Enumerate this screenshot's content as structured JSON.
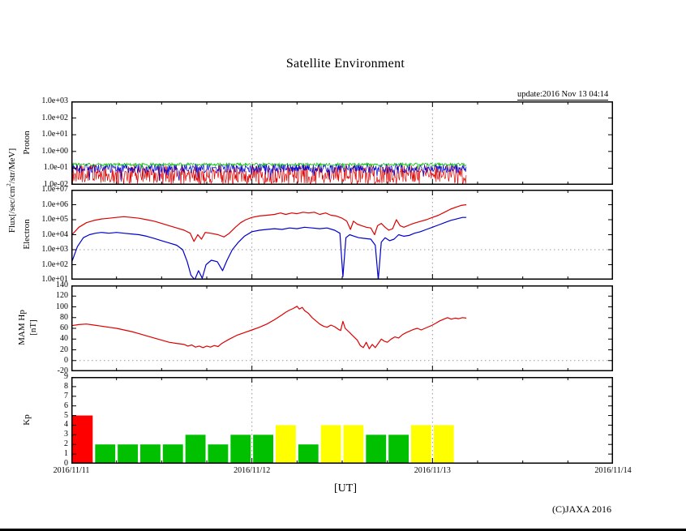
{
  "title": "Satellite Environment",
  "update_label": "update:2016 Nov 13 04:14",
  "footer": {
    "ut_label": "[UT]",
    "copyright": "(C)JAXA 2016"
  },
  "left_labels": {
    "flux_pre": "Flux[/sec/cm",
    "flux_sup": "2",
    "flux_post": "/str/MeV]",
    "proton": "Proton",
    "electron": "Electron",
    "mam": "MAM Hp",
    "mam_unit": "[nT]",
    "kp": "Kp"
  },
  "x_axis": {
    "labels": [
      "2016/11/11",
      "2016/11/12",
      "2016/11/13",
      "2016/11/14"
    ],
    "range_hours": [
      0,
      72
    ],
    "gridline_hours": [
      24,
      48
    ],
    "minor_tick_hours": 6
  },
  "chart_data": [
    {
      "name": "proton_flux",
      "type": "noise-band",
      "yscale": "log",
      "ylog_range": [
        -2,
        3
      ],
      "yticks": [
        "1.0e+03",
        "1.0e+02",
        "1.0e+01",
        "1.0e+00",
        "1.0e-01",
        "1.0e-02"
      ],
      "t_end_hours": 52.5,
      "series": [
        {
          "name": "proton-red",
          "color": "#dd0000",
          "log_center": -1.35,
          "log_amp": 0.55,
          "spike_prob": 0.15,
          "spike_mag": 0.65
        },
        {
          "name": "proton-blue",
          "color": "#0000cc",
          "log_center": -1.02,
          "log_amp": 0.28,
          "spike_prob": 0.05,
          "spike_mag": 0.7
        },
        {
          "name": "proton-green",
          "color": "#00bb00",
          "log_center": -0.78,
          "log_amp": 0.09,
          "spike_prob": 0.02,
          "spike_mag": 0.3
        }
      ]
    },
    {
      "name": "electron_flux",
      "type": "line",
      "yscale": "log",
      "ylog_range": [
        1,
        7
      ],
      "yticks": [
        "1.0e+07",
        "1.0e+06",
        "1.0e+05",
        "1.0e+04",
        "1.0e+03",
        "1.0e+02",
        "1.0e+01"
      ],
      "dotted_line_log": 3,
      "series": [
        {
          "name": "electron-red",
          "color": "#dd0000",
          "points": [
            [
              0,
              3.95
            ],
            [
              1,
              4.5
            ],
            [
              2,
              4.8
            ],
            [
              3,
              4.95
            ],
            [
              4,
              5.05
            ],
            [
              5,
              5.1
            ],
            [
              6,
              5.15
            ],
            [
              7,
              5.2
            ],
            [
              8,
              5.15
            ],
            [
              9,
              5.1
            ],
            [
              10,
              5.0
            ],
            [
              11,
              4.9
            ],
            [
              12,
              4.75
            ],
            [
              13,
              4.6
            ],
            [
              14,
              4.45
            ],
            [
              15,
              4.3
            ],
            [
              15.8,
              4.1
            ],
            [
              16.3,
              3.55
            ],
            [
              16.8,
              4.0
            ],
            [
              17.3,
              3.7
            ],
            [
              17.8,
              4.15
            ],
            [
              18.5,
              4.1
            ],
            [
              19.5,
              4.0
            ],
            [
              20.3,
              3.85
            ],
            [
              21,
              4.1
            ],
            [
              21.8,
              4.5
            ],
            [
              22.5,
              4.8
            ],
            [
              23.2,
              5.0
            ],
            [
              24,
              5.15
            ],
            [
              25,
              5.25
            ],
            [
              26,
              5.3
            ],
            [
              27,
              5.35
            ],
            [
              27.8,
              5.45
            ],
            [
              28.5,
              5.35
            ],
            [
              29.3,
              5.45
            ],
            [
              30,
              5.4
            ],
            [
              30.8,
              5.5
            ],
            [
              31.5,
              5.45
            ],
            [
              32.3,
              5.5
            ],
            [
              33,
              5.35
            ],
            [
              33.8,
              5.45
            ],
            [
              34.5,
              5.3
            ],
            [
              35.2,
              5.25
            ],
            [
              36,
              5.1
            ],
            [
              36.6,
              4.9
            ],
            [
              37.1,
              4.35
            ],
            [
              37.5,
              4.9
            ],
            [
              38,
              4.7
            ],
            [
              38.6,
              4.6
            ],
            [
              39.2,
              4.5
            ],
            [
              39.8,
              4.45
            ],
            [
              40.3,
              4.0
            ],
            [
              40.7,
              4.6
            ],
            [
              41.2,
              4.75
            ],
            [
              41.7,
              4.5
            ],
            [
              42.2,
              4.3
            ],
            [
              42.7,
              4.4
            ],
            [
              43.2,
              5.0
            ],
            [
              43.7,
              4.6
            ],
            [
              44.2,
              4.5
            ],
            [
              44.7,
              4.6
            ],
            [
              45.2,
              4.7
            ],
            [
              45.8,
              4.8
            ],
            [
              46.5,
              4.9
            ],
            [
              47.2,
              5.0
            ],
            [
              48,
              5.15
            ],
            [
              48.8,
              5.3
            ],
            [
              49.6,
              5.5
            ],
            [
              50.4,
              5.7
            ],
            [
              51.2,
              5.85
            ],
            [
              51.8,
              5.95
            ],
            [
              52.5,
              6.0
            ]
          ]
        },
        {
          "name": "electron-blue",
          "color": "#0000cc",
          "points": [
            [
              0,
              2.1
            ],
            [
              0.8,
              3.2
            ],
            [
              1.6,
              3.8
            ],
            [
              2.4,
              4.0
            ],
            [
              3.2,
              4.1
            ],
            [
              4,
              4.15
            ],
            [
              5,
              4.1
            ],
            [
              6,
              4.15
            ],
            [
              7,
              4.1
            ],
            [
              8,
              4.05
            ],
            [
              9,
              4.0
            ],
            [
              10,
              3.9
            ],
            [
              11,
              3.75
            ],
            [
              12,
              3.6
            ],
            [
              13,
              3.45
            ],
            [
              14,
              3.3
            ],
            [
              14.8,
              3.0
            ],
            [
              15.4,
              2.2
            ],
            [
              15.9,
              1.3
            ],
            [
              16.4,
              1.0
            ],
            [
              16.9,
              1.6
            ],
            [
              17.4,
              1.1
            ],
            [
              17.9,
              2.0
            ],
            [
              18.6,
              2.3
            ],
            [
              19.4,
              2.2
            ],
            [
              20.1,
              1.6
            ],
            [
              20.7,
              2.3
            ],
            [
              21.4,
              3.0
            ],
            [
              22.2,
              3.5
            ],
            [
              23,
              3.9
            ],
            [
              24,
              4.2
            ],
            [
              25,
              4.3
            ],
            [
              26,
              4.35
            ],
            [
              27,
              4.4
            ],
            [
              28,
              4.35
            ],
            [
              29,
              4.45
            ],
            [
              30,
              4.4
            ],
            [
              31,
              4.5
            ],
            [
              32,
              4.45
            ],
            [
              33,
              4.4
            ],
            [
              34,
              4.45
            ],
            [
              35,
              4.3
            ],
            [
              35.7,
              4.1
            ],
            [
              36.1,
              1.2
            ],
            [
              36.5,
              3.8
            ],
            [
              37,
              4.0
            ],
            [
              37.6,
              3.9
            ],
            [
              38.2,
              3.8
            ],
            [
              39,
              3.75
            ],
            [
              39.8,
              3.7
            ],
            [
              40.4,
              3.3
            ],
            [
              40.8,
              1.0
            ],
            [
              41.2,
              3.5
            ],
            [
              41.7,
              3.8
            ],
            [
              42.3,
              3.6
            ],
            [
              42.9,
              3.7
            ],
            [
              43.5,
              4.0
            ],
            [
              44.2,
              3.9
            ],
            [
              44.9,
              3.95
            ],
            [
              45.6,
              4.1
            ],
            [
              46.4,
              4.2
            ],
            [
              47.2,
              4.35
            ],
            [
              48,
              4.5
            ],
            [
              48.8,
              4.65
            ],
            [
              49.6,
              4.8
            ],
            [
              50.4,
              4.95
            ],
            [
              51.2,
              5.05
            ],
            [
              52,
              5.15
            ],
            [
              52.5,
              5.15
            ]
          ]
        }
      ]
    },
    {
      "name": "mam_hp",
      "type": "line",
      "yscale": "linear",
      "yrange": [
        -20,
        140
      ],
      "yticks": [
        "140",
        "120",
        "100",
        "80",
        "60",
        "40",
        "20",
        "0",
        "-20"
      ],
      "dotted_line_value": 0,
      "series": [
        {
          "name": "mam-red",
          "color": "#dd0000",
          "points": [
            [
              0,
              65
            ],
            [
              1,
              67
            ],
            [
              2,
              68
            ],
            [
              3,
              66
            ],
            [
              4,
              64
            ],
            [
              5,
              62
            ],
            [
              6,
              60
            ],
            [
              7,
              57
            ],
            [
              8,
              54
            ],
            [
              9,
              50
            ],
            [
              10,
              46
            ],
            [
              11,
              42
            ],
            [
              12,
              38
            ],
            [
              13,
              34
            ],
            [
              14,
              32
            ],
            [
              15,
              30
            ],
            [
              15.5,
              27
            ],
            [
              16,
              29
            ],
            [
              16.5,
              25
            ],
            [
              17,
              27
            ],
            [
              17.5,
              24
            ],
            [
              18,
              27
            ],
            [
              18.5,
              25
            ],
            [
              19,
              28
            ],
            [
              19.5,
              26
            ],
            [
              20,
              32
            ],
            [
              21,
              40
            ],
            [
              22,
              47
            ],
            [
              23,
              52
            ],
            [
              24,
              57
            ],
            [
              25,
              62
            ],
            [
              26,
              68
            ],
            [
              27,
              76
            ],
            [
              28,
              85
            ],
            [
              28.5,
              90
            ],
            [
              29,
              94
            ],
            [
              29.5,
              97
            ],
            [
              30,
              101
            ],
            [
              30.3,
              96
            ],
            [
              30.7,
              99
            ],
            [
              31,
              93
            ],
            [
              31.5,
              88
            ],
            [
              32,
              80
            ],
            [
              32.5,
              74
            ],
            [
              33,
              68
            ],
            [
              33.5,
              64
            ],
            [
              34,
              62
            ],
            [
              34.5,
              66
            ],
            [
              35,
              63
            ],
            [
              35.5,
              58
            ],
            [
              35.8,
              56
            ],
            [
              36.1,
              73
            ],
            [
              36.4,
              60
            ],
            [
              37,
              52
            ],
            [
              37.5,
              45
            ],
            [
              38,
              38
            ],
            [
              38.4,
              28
            ],
            [
              38.8,
              24
            ],
            [
              39.2,
              34
            ],
            [
              39.6,
              22
            ],
            [
              40,
              30
            ],
            [
              40.4,
              24
            ],
            [
              40.8,
              32
            ],
            [
              41.2,
              40
            ],
            [
              41.6,
              36
            ],
            [
              42,
              34
            ],
            [
              42.5,
              40
            ],
            [
              43,
              44
            ],
            [
              43.5,
              42
            ],
            [
              44,
              48
            ],
            [
              44.5,
              52
            ],
            [
              45,
              55
            ],
            [
              45.5,
              58
            ],
            [
              46,
              60
            ],
            [
              46.5,
              57
            ],
            [
              47,
              60
            ],
            [
              47.5,
              63
            ],
            [
              48,
              66
            ],
            [
              48.5,
              70
            ],
            [
              49,
              74
            ],
            [
              49.5,
              77
            ],
            [
              50,
              80
            ],
            [
              50.5,
              77
            ],
            [
              51,
              79
            ],
            [
              51.5,
              78
            ],
            [
              52,
              80
            ],
            [
              52.5,
              79
            ]
          ]
        }
      ]
    },
    {
      "name": "kp_index",
      "type": "bar",
      "yscale": "linear",
      "yrange": [
        0,
        9
      ],
      "yticks": [
        "9",
        "8",
        "7",
        "6",
        "5",
        "4",
        "3",
        "2",
        "1",
        "0"
      ],
      "bar_hours": 3,
      "values": [
        5,
        2,
        2,
        2,
        2,
        3,
        2,
        3,
        3,
        4,
        2,
        4,
        4,
        3,
        3,
        4,
        4
      ],
      "colors": {
        "low": "#00c000",
        "mid": "#ffff00",
        "high": "#ff0000"
      },
      "thresholds": {
        "mid_value": 4,
        "high_min": 5
      }
    }
  ]
}
